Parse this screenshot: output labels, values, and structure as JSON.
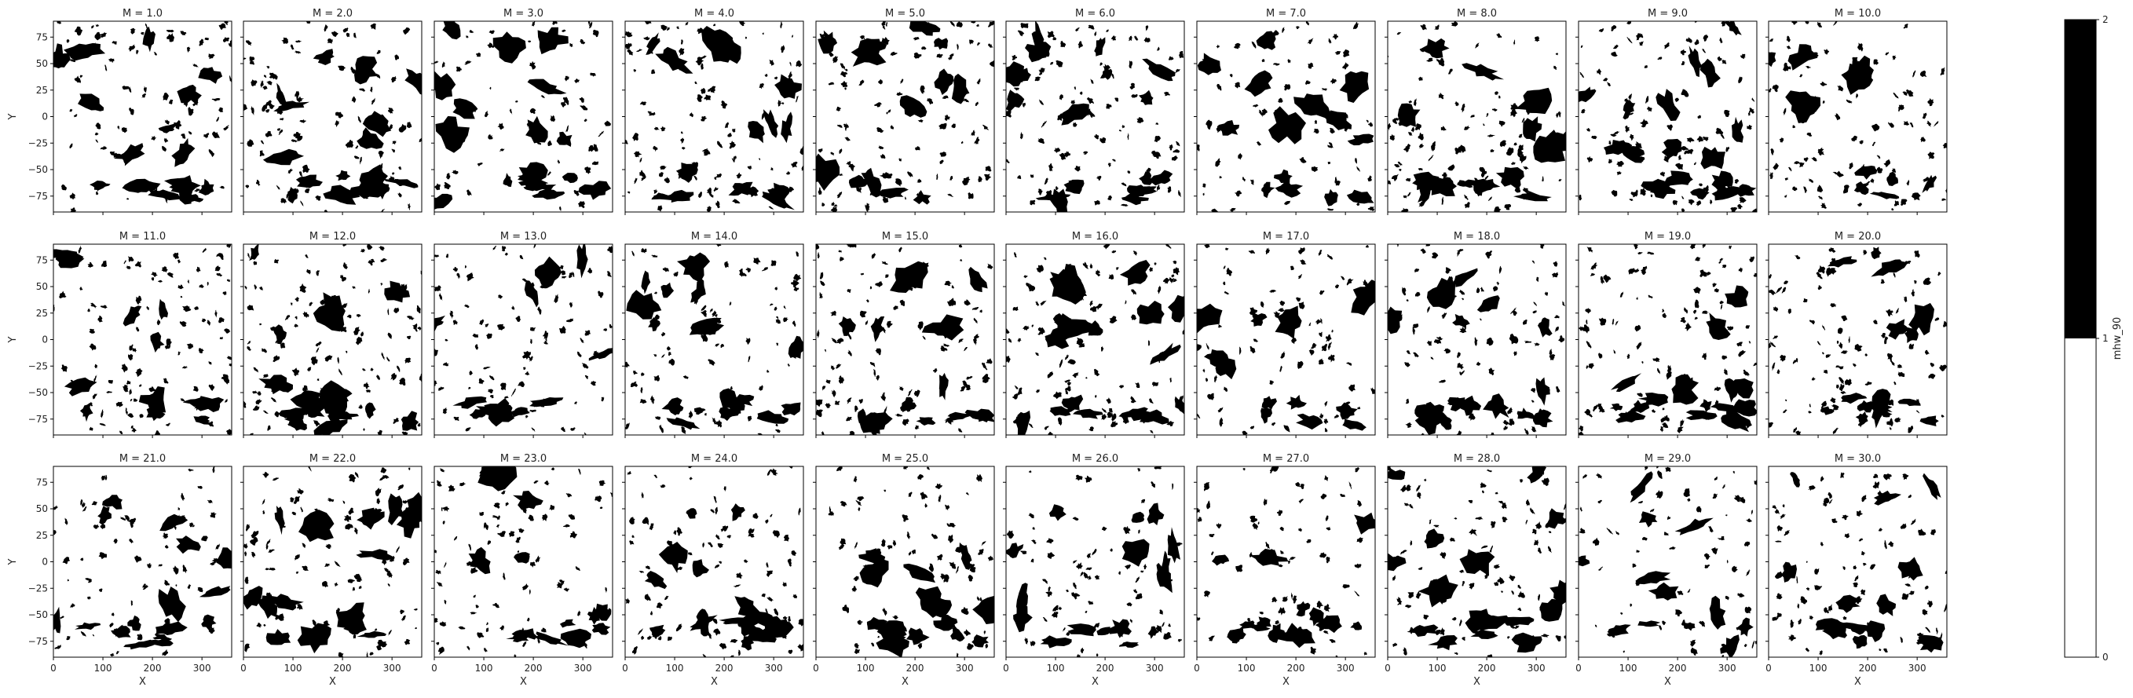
{
  "chart_data": {
    "type": "heatmap",
    "facet_variable": "M",
    "panels": [
      {
        "title": "M = 1.0",
        "m": 1.0
      },
      {
        "title": "M = 2.0",
        "m": 2.0
      },
      {
        "title": "M = 3.0",
        "m": 3.0
      },
      {
        "title": "M = 4.0",
        "m": 4.0
      },
      {
        "title": "M = 5.0",
        "m": 5.0
      },
      {
        "title": "M = 6.0",
        "m": 6.0
      },
      {
        "title": "M = 7.0",
        "m": 7.0
      },
      {
        "title": "M = 8.0",
        "m": 8.0
      },
      {
        "title": "M = 9.0",
        "m": 9.0
      },
      {
        "title": "M = 10.0",
        "m": 10.0
      },
      {
        "title": "M = 11.0",
        "m": 11.0
      },
      {
        "title": "M = 12.0",
        "m": 12.0
      },
      {
        "title": "M = 13.0",
        "m": 13.0
      },
      {
        "title": "M = 14.0",
        "m": 14.0
      },
      {
        "title": "M = 15.0",
        "m": 15.0
      },
      {
        "title": "M = 16.0",
        "m": 16.0
      },
      {
        "title": "M = 17.0",
        "m": 17.0
      },
      {
        "title": "M = 18.0",
        "m": 18.0
      },
      {
        "title": "M = 19.0",
        "m": 19.0
      },
      {
        "title": "M = 20.0",
        "m": 20.0
      },
      {
        "title": "M = 21.0",
        "m": 21.0
      },
      {
        "title": "M = 22.0",
        "m": 22.0
      },
      {
        "title": "M = 23.0",
        "m": 23.0
      },
      {
        "title": "M = 24.0",
        "m": 24.0
      },
      {
        "title": "M = 25.0",
        "m": 25.0
      },
      {
        "title": "M = 26.0",
        "m": 26.0
      },
      {
        "title": "M = 27.0",
        "m": 27.0
      },
      {
        "title": "M = 28.0",
        "m": 28.0
      },
      {
        "title": "M = 29.0",
        "m": 29.0
      },
      {
        "title": "M = 30.0",
        "m": 30.0
      }
    ],
    "xlabel": "X",
    "ylabel": "Y",
    "xlim": [
      0,
      360
    ],
    "ylim": [
      -90,
      90
    ],
    "xticks": [
      0,
      100,
      200,
      300
    ],
    "xtick_labels": [
      "0",
      "100",
      "200",
      "300"
    ],
    "yticks": [
      75,
      50,
      25,
      0,
      -25,
      -50,
      -75
    ],
    "ytick_labels": [
      "75",
      "50",
      "25",
      "0",
      "−25",
      "−50",
      "−75"
    ],
    "colorbar": {
      "label": "mhw_90",
      "ticks": [
        0,
        1,
        2
      ],
      "tick_labels": [
        "0",
        "1",
        "2"
      ],
      "colors": [
        "#ffffff",
        "#000000"
      ],
      "bounds": [
        0,
        1,
        2
      ]
    },
    "grid": false,
    "colors": {
      "fill": "#000000",
      "background": "#ffffff",
      "frame": "#000000"
    }
  }
}
